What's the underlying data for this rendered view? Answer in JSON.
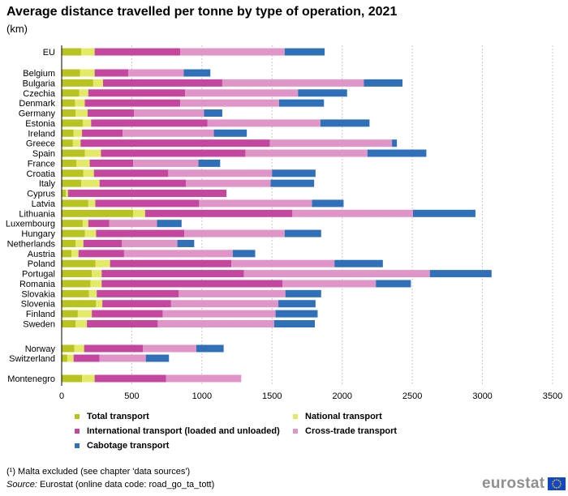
{
  "title": "Average distance travelled per tonne by type of operation, 2021",
  "subtitle": "(km)",
  "footnote": "(¹) Malta excluded (see chapter 'data sources')",
  "source": {
    "label": "Source:",
    "text": " Eurostat (online data code: road_go_ta_tott)"
  },
  "logo": {
    "text": "eurostat",
    "flag_color": "#0e47cb",
    "star_color": "#ffcc00"
  },
  "chart_data": {
    "type": "bar",
    "orientation": "horizontal",
    "stacked": true,
    "xlim": [
      0,
      3500
    ],
    "xticks": [
      0,
      500,
      1000,
      1500,
      2000,
      2500,
      3000,
      3500
    ],
    "grid": "vertical dashed",
    "legend_position": "bottom",
    "categories": [
      "EU",
      "Belgium",
      "Bulgaria",
      "Czechia",
      "Denmark",
      "Germany",
      "Estonia",
      "Ireland",
      "Greece",
      "Spain",
      "France",
      "Croatia",
      "Italy",
      "Cyprus",
      "Latvia",
      "Lithuania",
      "Luxembourg",
      "Hungary",
      "Netherlands",
      "Austria",
      "Poland",
      "Portugal",
      "Romania",
      "Slovakia",
      "Slovenia",
      "Finland",
      "Sweden",
      "Norway",
      "Switzerland",
      "Montenegro"
    ],
    "series": [
      {
        "name": "Total transport",
        "color": "#b9c31f",
        "values": [
          140,
          130,
          225,
          125,
          95,
          100,
          150,
          85,
          80,
          165,
          105,
          155,
          140,
          30,
          190,
          510,
          150,
          165,
          100,
          70,
          240,
          215,
          205,
          195,
          245,
          115,
          100,
          90,
          40,
          145
        ]
      },
      {
        "name": "National transport",
        "color": "#e3ea66",
        "values": [
          95,
          105,
          70,
          65,
          70,
          85,
          60,
          60,
          55,
          115,
          95,
          75,
          130,
          15,
          50,
          85,
          40,
          80,
          55,
          50,
          105,
          70,
          80,
          55,
          45,
          100,
          80,
          70,
          45,
          90
        ]
      },
      {
        "name": "International transport (loaded and unloaded)",
        "color": "#c5469f",
        "values": [
          610,
          240,
          850,
          690,
          680,
          330,
          830,
          290,
          1350,
          1030,
          310,
          530,
          615,
          1130,
          740,
          1050,
          150,
          630,
          275,
          325,
          865,
          1015,
          1290,
          585,
          490,
          505,
          505,
          420,
          185,
          510
        ]
      },
      {
        "name": "Cross-trade transport",
        "color": "#e095c8",
        "values": [
          745,
          395,
          1010,
          805,
          705,
          500,
          805,
          650,
          870,
          870,
          465,
          740,
          605,
          0,
          805,
          860,
          340,
          715,
          395,
          775,
          735,
          1325,
          665,
          760,
          765,
          805,
          830,
          380,
          330,
          535
        ]
      },
      {
        "name": "Cabotage transport",
        "color": "#2f70b8",
        "values": [
          285,
          190,
          275,
          350,
          320,
          130,
          350,
          235,
          35,
          420,
          155,
          310,
          310,
          0,
          225,
          445,
          175,
          260,
          120,
          160,
          345,
          440,
          250,
          255,
          265,
          300,
          290,
          195,
          165,
          0
        ]
      }
    ]
  },
  "legend": {
    "total": "Total transport",
    "national": "National transport",
    "international": "International transport (loaded and unloaded)",
    "cross": "Cross-trade transport",
    "cabotage": "Cabotage transport"
  }
}
